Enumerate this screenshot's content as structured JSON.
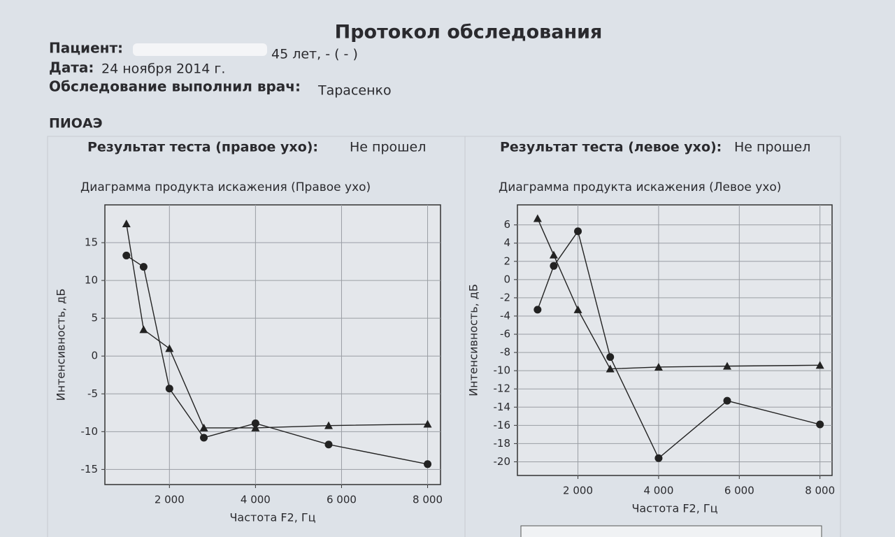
{
  "document": {
    "title": "Протокол обследования",
    "patient_label": "Пациент:",
    "patient_value": "45 лет, - ( - )",
    "date_label": "Дата:",
    "date_value": "24 ноября 2014 г.",
    "doctor_label": "Обследование выполнил врач:",
    "doctor_value": "Тарасенко",
    "section": "ПИОАЭ",
    "panels": [
      {
        "result_label": "Результат теста (правое ухо):",
        "result_value": "Не прошел"
      },
      {
        "result_label": "Результат теста (левое ухо):",
        "result_value": "Не прошел"
      }
    ]
  },
  "chart_data": [
    {
      "type": "line",
      "title": "Диаграмма продукта искажения (Правое ухо)",
      "x_label": "Частота F2, Гц",
      "y_label": "Интенсивность, дБ",
      "x": [
        1000,
        1400,
        2000,
        2800,
        4000,
        5700,
        8000
      ],
      "xlim": [
        500,
        8300
      ],
      "xticks": [
        {
          "value": 2000,
          "label": "2 000"
        },
        {
          "value": 4000,
          "label": "4 000"
        },
        {
          "value": 6000,
          "label": "6 000"
        },
        {
          "value": 8000,
          "label": "8 000"
        }
      ],
      "ylim": [
        -17,
        20
      ],
      "yticks": [
        -15,
        -10,
        -5,
        0,
        5,
        10,
        15
      ],
      "grid": true,
      "series": [
        {
          "color": "#222222",
          "marker": "triangle",
          "values": [
            17.5,
            3.5,
            1.0,
            -9.5,
            -9.5,
            -9.2,
            -9.0
          ]
        },
        {
          "color": "#222222",
          "marker": "circle",
          "values": [
            13.3,
            11.8,
            -4.3,
            -10.8,
            -8.9,
            -11.7,
            -14.3
          ]
        }
      ]
    },
    {
      "type": "line",
      "title": "Диаграмма продукта искажения (Левое ухо)",
      "x_label": "Частота F2, Гц",
      "y_label": "Интенсивность, дБ",
      "x": [
        1000,
        1400,
        2000,
        2800,
        4000,
        5700,
        8000
      ],
      "xlim": [
        500,
        8300
      ],
      "xticks": [
        {
          "value": 2000,
          "label": "2 000"
        },
        {
          "value": 4000,
          "label": "4 000"
        },
        {
          "value": 6000,
          "label": "6 000"
        },
        {
          "value": 8000,
          "label": "8 000"
        }
      ],
      "ylim": [
        -21.5,
        8.2
      ],
      "yticks": [
        -20,
        -18,
        -16,
        -14,
        -12,
        -10,
        -8,
        -6,
        -4,
        -2,
        0,
        2,
        4,
        6
      ],
      "grid": true,
      "series": [
        {
          "color": "#222222",
          "marker": "triangle",
          "values": [
            6.7,
            2.7,
            -3.3,
            -9.8,
            -9.6,
            -9.5,
            -9.4
          ]
        },
        {
          "color": "#222222",
          "marker": "circle",
          "values": [
            -3.3,
            1.5,
            5.3,
            -8.5,
            -19.6,
            -13.3,
            -15.9
          ]
        }
      ]
    }
  ]
}
